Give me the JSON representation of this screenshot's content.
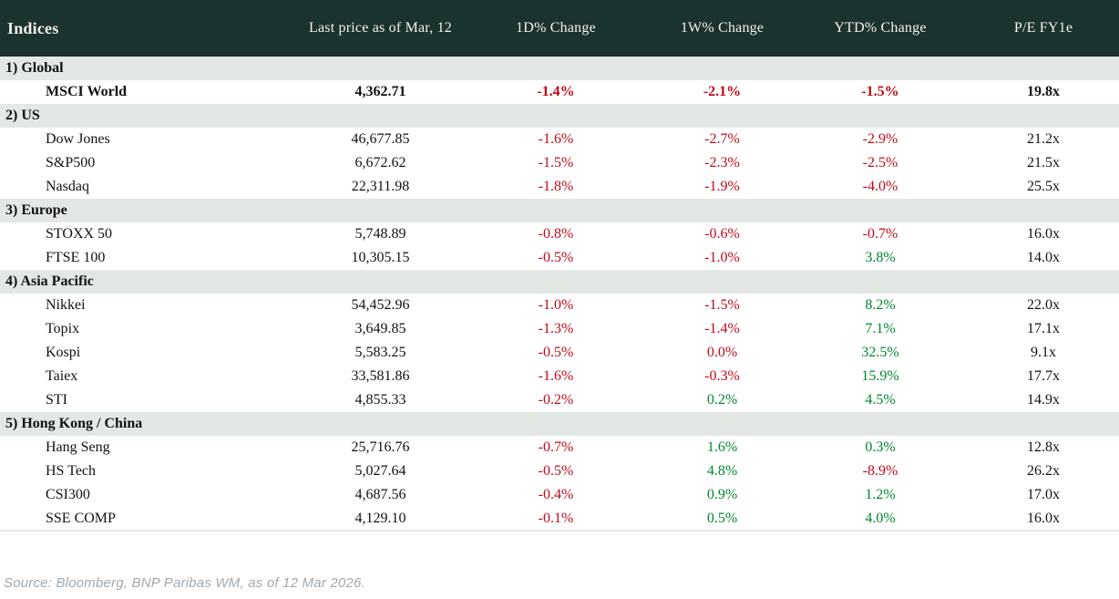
{
  "table": {
    "columns": [
      "Indices",
      "Last price as of Mar, 12",
      "1D% Change",
      "1W% Change",
      "YTD% Change",
      "P/E FY1e"
    ],
    "sections": [
      {
        "label": "1) Global",
        "rows": [
          {
            "name": "MSCI World",
            "price": "4,362.71",
            "d1": "-1.4%",
            "w1": "-2.1%",
            "ytd": "-1.5%",
            "pe": "19.8x",
            "bold": true
          }
        ]
      },
      {
        "label": "2) US",
        "rows": [
          {
            "name": "Dow Jones",
            "price": "46,677.85",
            "d1": "-1.6%",
            "w1": "-2.7%",
            "ytd": "-2.9%",
            "pe": "21.2x"
          },
          {
            "name": "S&P500",
            "price": "6,672.62",
            "d1": "-1.5%",
            "w1": "-2.3%",
            "ytd": "-2.5%",
            "pe": "21.5x"
          },
          {
            "name": "Nasdaq",
            "price": "22,311.98",
            "d1": "-1.8%",
            "w1": "-1.9%",
            "ytd": "-4.0%",
            "pe": "25.5x"
          }
        ]
      },
      {
        "label": "3) Europe",
        "rows": [
          {
            "name": "STOXX 50",
            "price": "5,748.89",
            "d1": "-0.8%",
            "w1": "-0.6%",
            "ytd": "-0.7%",
            "pe": "16.0x"
          },
          {
            "name": "FTSE 100",
            "price": "10,305.15",
            "d1": "-0.5%",
            "w1": "-1.0%",
            "ytd": "3.8%",
            "pe": "14.0x"
          }
        ]
      },
      {
        "label": "4) Asia Pacific",
        "rows": [
          {
            "name": "Nikkei",
            "price": "54,452.96",
            "d1": "-1.0%",
            "w1": "-1.5%",
            "ytd": "8.2%",
            "pe": "22.0x"
          },
          {
            "name": "Topix",
            "price": "3,649.85",
            "d1": "-1.3%",
            "w1": "-1.4%",
            "ytd": "7.1%",
            "pe": "17.1x"
          },
          {
            "name": "Kospi",
            "price": "5,583.25",
            "d1": "-0.5%",
            "w1": "0.0%",
            "ytd": "32.5%",
            "pe": "9.1x"
          },
          {
            "name": "Taiex",
            "price": "33,581.86",
            "d1": "-1.6%",
            "w1": "-0.3%",
            "ytd": "15.9%",
            "pe": "17.7x"
          },
          {
            "name": "STI",
            "price": "4,855.33",
            "d1": "-0.2%",
            "w1": "0.2%",
            "ytd": "4.5%",
            "pe": "14.9x"
          }
        ]
      },
      {
        "label": "5) Hong Kong / China",
        "rows": [
          {
            "name": "Hang Seng",
            "price": "25,716.76",
            "d1": "-0.7%",
            "w1": "1.6%",
            "ytd": "0.3%",
            "pe": "12.8x"
          },
          {
            "name": "HS Tech",
            "price": "5,027.64",
            "d1": "-0.5%",
            "w1": "4.8%",
            "ytd": "-8.9%",
            "pe": "26.2x"
          },
          {
            "name": "CSI300",
            "price": "4,687.56",
            "d1": "-0.4%",
            "w1": "0.9%",
            "ytd": "1.2%",
            "pe": "17.0x"
          },
          {
            "name": "SSE COMP",
            "price": "4,129.10",
            "d1": "-0.1%",
            "w1": "0.5%",
            "ytd": "4.0%",
            "pe": "16.0x"
          }
        ]
      }
    ]
  },
  "source_note": "Source: Bloomberg, BNP Paribas WM, as of 12 Mar 2026.",
  "colors": {
    "header_bg": "#1b332f",
    "header_text": "#f4f1e8",
    "section_bg": "#e3e8e4",
    "text": "#121212",
    "negative": "#c00a18",
    "positive": "#00872e",
    "source_text": "#9fa9b2"
  }
}
